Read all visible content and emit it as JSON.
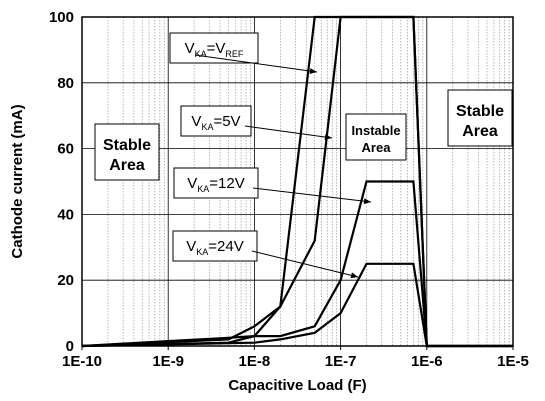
{
  "chart_data": {
    "type": "line",
    "title": "",
    "xlabel": "Capacitive Load (F)",
    "ylabel": "Cathode current (mA)",
    "xscale": "log",
    "xlim": [
      1e-10,
      1e-05
    ],
    "ylim": [
      0,
      100
    ],
    "x_ticks": [
      "1E-10",
      "1E-9",
      "1E-8",
      "1E-7",
      "1E-6",
      "1E-5"
    ],
    "y_ticks": [
      "0",
      "20",
      "40",
      "60",
      "80",
      "100"
    ],
    "grid": true,
    "series": [
      {
        "name": "VKA=VREF",
        "label_main": "V",
        "label_sub1": "KA",
        "label_mid": "=V",
        "label_sub2": "REF",
        "x": [
          1e-10,
          5e-09,
          1e-08,
          2e-08,
          5e-08,
          1e-07,
          2e-07,
          5e-07,
          7e-07,
          1e-06,
          1e-05
        ],
        "y": [
          0,
          1,
          3,
          12,
          100,
          100,
          100,
          100,
          100,
          0,
          0
        ]
      },
      {
        "name": "VKA=5V",
        "label_main": "V",
        "label_sub1": "KA",
        "label_mid": "=5V",
        "label_sub2": "",
        "x": [
          1e-10,
          5e-09,
          1e-08,
          2e-08,
          5e-08,
          1e-07,
          2e-07,
          5e-07,
          7e-07,
          1e-06,
          1e-05
        ],
        "y": [
          0,
          2,
          6,
          12,
          32,
          100,
          100,
          100,
          100,
          0,
          0
        ]
      },
      {
        "name": "VKA=12V",
        "label_main": "V",
        "label_sub1": "KA",
        "label_mid": "=12V",
        "label_sub2": "",
        "x": [
          1e-10,
          1e-09,
          5e-09,
          1e-08,
          2e-08,
          5e-08,
          1e-07,
          2e-07,
          5e-07,
          7e-07,
          1e-06,
          1e-05
        ],
        "y": [
          0,
          1.5,
          2.5,
          3,
          3,
          6,
          20,
          50,
          50,
          50,
          0,
          0
        ]
      },
      {
        "name": "VKA=24V",
        "label_main": "V",
        "label_sub1": "KA",
        "label_mid": "=24V",
        "label_sub2": "",
        "x": [
          1e-10,
          1e-09,
          1e-08,
          2e-08,
          5e-08,
          1e-07,
          2e-07,
          5e-07,
          7e-07,
          1e-06,
          1e-05
        ],
        "y": [
          0,
          0.5,
          1,
          2,
          4,
          10,
          25,
          25,
          25,
          0,
          0
        ]
      }
    ],
    "regions": [
      {
        "line1": "Stable",
        "line2": "Area"
      },
      {
        "line1": "Instable",
        "line2": "Area"
      },
      {
        "line1": "Stable",
        "line2": "Area"
      }
    ]
  }
}
